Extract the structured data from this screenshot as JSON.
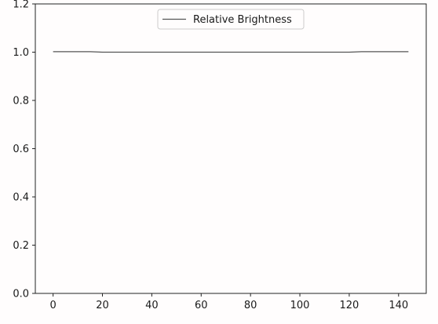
{
  "chart_data": {
    "type": "line",
    "title": "",
    "xlabel": "",
    "ylabel": "",
    "xlim": [
      -7.2,
      151.2
    ],
    "ylim": [
      0,
      1.2
    ],
    "x_ticks": [
      0,
      20,
      40,
      60,
      80,
      100,
      120,
      140
    ],
    "y_ticks": [
      0.0,
      0.2,
      0.4,
      0.6,
      0.8,
      1.0,
      1.2
    ],
    "y_tick_labels": [
      "0.0",
      "0.2",
      "0.4",
      "0.6",
      "0.8",
      "1.0",
      "1.2"
    ],
    "grid": false,
    "legend_position": "top-center",
    "series": [
      {
        "name": "Relative Brightness",
        "color": "#555555",
        "x": [
          0,
          5,
          10,
          15,
          20,
          30,
          40,
          60,
          80,
          100,
          110,
          120,
          125,
          130,
          135,
          140,
          144
        ],
        "y": [
          1.002,
          1.002,
          1.002,
          1.002,
          1.0,
          1.0,
          1.0,
          1.0,
          1.0,
          1.0,
          1.0,
          1.0,
          1.002,
          1.002,
          1.002,
          1.002,
          1.002
        ]
      }
    ]
  }
}
